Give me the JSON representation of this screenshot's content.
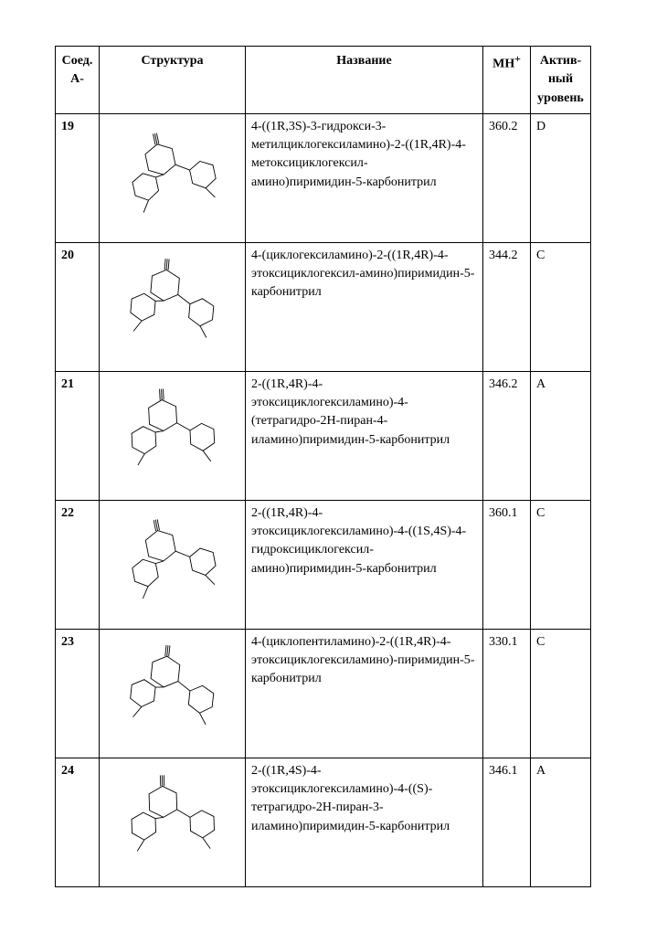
{
  "columns": {
    "id_header_line1": "Соед.",
    "id_header_line2": "A-",
    "struct_header": "Структура",
    "name_header": "Название",
    "mh_header": "MH",
    "mh_header_sup": "+",
    "act_header_line1": "Актив-",
    "act_header_line2": "ный",
    "act_header_line3": "уровень"
  },
  "rows": [
    {
      "id": "19",
      "name": "4-((1R,3S)-3-гидрокси-3-метилциклогексиламино)-2-((1R,4R)-4-метоксициклогексил-амино)пиримидин-5-карбонитрил",
      "mh": "360.2",
      "act": "D",
      "struct_alt": "structure 19"
    },
    {
      "id": "20",
      "name": "4-(циклогексиламино)-2-((1R,4R)-4-этоксициклогексил-амино)пиримидин-5-карбонитрил",
      "mh": "344.2",
      "act": "C",
      "struct_alt": "structure 20"
    },
    {
      "id": "21",
      "name": "2-((1R,4R)-4-этоксициклогексиламино)-4-(тетрагидро-2H-пиран-4-иламино)пиримидин-5-карбонитрил",
      "mh": "346.2",
      "act": "A",
      "struct_alt": "structure 21"
    },
    {
      "id": "22",
      "name": "2-((1R,4R)-4-этоксициклогексиламино)-4-((1S,4S)-4-гидроксициклогексил-амино)пиримидин-5-карбонитрил",
      "mh": "360.1",
      "act": "C",
      "struct_alt": "structure 22"
    },
    {
      "id": "23",
      "name": "4-(циклопентиламино)-2-((1R,4R)-4-этоксициклогексиламино)-пиримидин-5-карбонитрил",
      "mh": "330.1",
      "act": "C",
      "struct_alt": "structure 23"
    },
    {
      "id": "24",
      "name": "2-((1R,4S)-4-этоксициклогексиламино)-4-((S)-тетрагидро-2H-пиран-3-иламино)пиримидин-5-карбонитрил",
      "mh": "346.1",
      "act": "A",
      "struct_alt": "structure 24"
    }
  ],
  "struct_svg_stroke": "#000000",
  "struct_svg_stroke_width": 0.9
}
